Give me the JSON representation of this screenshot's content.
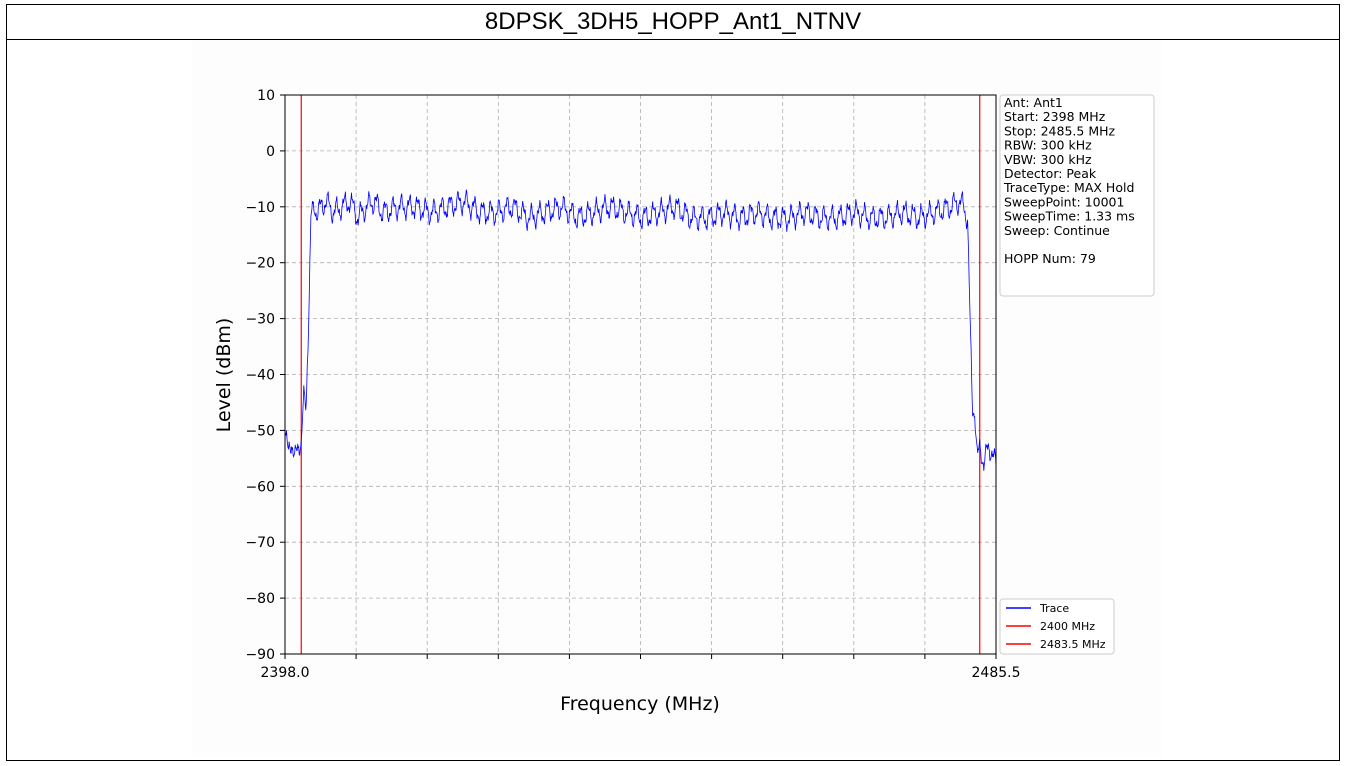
{
  "title": "8DPSK_3DH5_HOPP_Ant1_NTNV",
  "colors": {
    "trace": "#0000ff",
    "limit": "#ff0000",
    "grid": "#b0b0b0"
  },
  "info_box": [
    "Ant: Ant1",
    "Start: 2398 MHz",
    "Stop: 2485.5 MHz",
    "RBW: 300 kHz",
    "VBW: 300 kHz",
    "Detector: Peak",
    "TraceType: MAX Hold",
    "SweepPoint: 10001",
    "SweepTime: 1.33 ms",
    "Sweep: Continue",
    "",
    "HOPP Num: 79"
  ],
  "chart_data": {
    "type": "line",
    "title": "8DPSK_3DH5_HOPP_Ant1_NTNV",
    "xlabel": "Frequency (MHz)",
    "ylabel": "Level (dBm)",
    "xlim": [
      2398.0,
      2485.5
    ],
    "ylim": [
      -90,
      10
    ],
    "x_tick_labels": [
      "2398.0",
      "2485.5"
    ],
    "y_ticks": [
      10,
      0,
      -10,
      -20,
      -30,
      -40,
      -50,
      -60,
      -70,
      -80,
      -90
    ],
    "y_tick_labels": [
      "10",
      "0",
      "−10",
      "−20",
      "−30",
      "−40",
      "−50",
      "−60",
      "−70",
      "−80",
      "−90"
    ],
    "grid": true,
    "legend_position": "bottom-right",
    "legend": [
      "Trace",
      "2400 MHz",
      "2483.5 MHz"
    ],
    "vertical_lines": [
      2400,
      2483.5
    ],
    "series": [
      {
        "name": "Trace",
        "x": [
          2398.0,
          2398.4,
          2398.8,
          2399.2,
          2399.6,
          2400.0,
          2400.3,
          2400.6,
          2400.9,
          2401.2,
          2401.6,
          2402.0,
          2403.0,
          2404.0,
          2405.0,
          2406.0,
          2407.0,
          2408.0,
          2409.0,
          2410.0,
          2412.0,
          2414.0,
          2416.0,
          2418.0,
          2420.0,
          2422.0,
          2424.0,
          2426.0,
          2428.0,
          2430.0,
          2432.0,
          2434.0,
          2436.0,
          2438.0,
          2440.0,
          2442.0,
          2444.0,
          2446.0,
          2448.0,
          2450.0,
          2452.0,
          2454.0,
          2456.0,
          2458.0,
          2460.0,
          2462.0,
          2464.0,
          2466.0,
          2468.0,
          2470.0,
          2472.0,
          2474.0,
          2476.0,
          2478.0,
          2480.0,
          2481.0,
          2481.5,
          2482.0,
          2482.3,
          2482.6,
          2482.9,
          2483.2,
          2483.5,
          2484.0,
          2484.5,
          2485.0,
          2485.5
        ],
        "y": [
          -50,
          -54,
          -52,
          -55,
          -53,
          -52,
          -44,
          -46,
          -30,
          -12,
          -10,
          -11,
          -9,
          -11,
          -10,
          -9,
          -12,
          -10,
          -9,
          -11,
          -10,
          -10,
          -11,
          -10,
          -9,
          -11,
          -11,
          -10,
          -12,
          -11,
          -10,
          -12,
          -11,
          -10,
          -11,
          -12,
          -11,
          -10,
          -12,
          -12,
          -11,
          -12,
          -11,
          -12,
          -12,
          -11,
          -12,
          -12,
          -11,
          -12,
          -12,
          -11,
          -12,
          -11,
          -10,
          -9,
          -10,
          -12,
          -30,
          -46,
          -47,
          -55,
          -53,
          -56,
          -53,
          -54,
          -56
        ]
      }
    ]
  }
}
